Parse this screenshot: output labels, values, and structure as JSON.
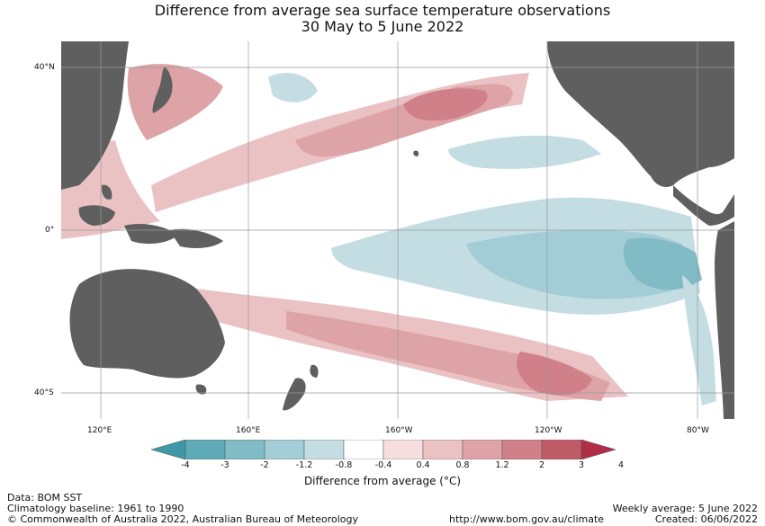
{
  "title_line1": "Difference from average sea surface temperature observations",
  "title_line2": "30 May to 5 June 2022",
  "lat_labels": [
    "40°N",
    "0°",
    "40°S"
  ],
  "lon_labels": [
    "120°E",
    "160°E",
    "160°W",
    "120°W",
    "80°W"
  ],
  "colorbar": {
    "title": "Difference from average (°C)",
    "tick_labels": [
      "-4",
      "-3",
      "-2",
      "-1.2",
      "-0.8",
      "-0.4",
      "0.4",
      "0.8",
      "1.2",
      "2",
      "3",
      "4"
    ],
    "colors": [
      "#3e98a6",
      "#5eaab7",
      "#80bbc6",
      "#a3cdd6",
      "#c4dde3",
      "#ffffff",
      "#f6dede",
      "#ebc2c3",
      "#dea3a6",
      "#d08088",
      "#c05c68",
      "#b02e45"
    ],
    "land_color": "#5f5f5f"
  },
  "footer": {
    "data_source": "Data: BOM SST",
    "baseline": "Climatology baseline: 1961 to 1990",
    "copyright": "© Commonwealth of Australia 2022, Australian Bureau of Meteorology",
    "url": "http://www.bom.gov.au/climate",
    "weekly": "Weekly average: 5 June 2022",
    "created": "Created: 06/06/2022"
  }
}
